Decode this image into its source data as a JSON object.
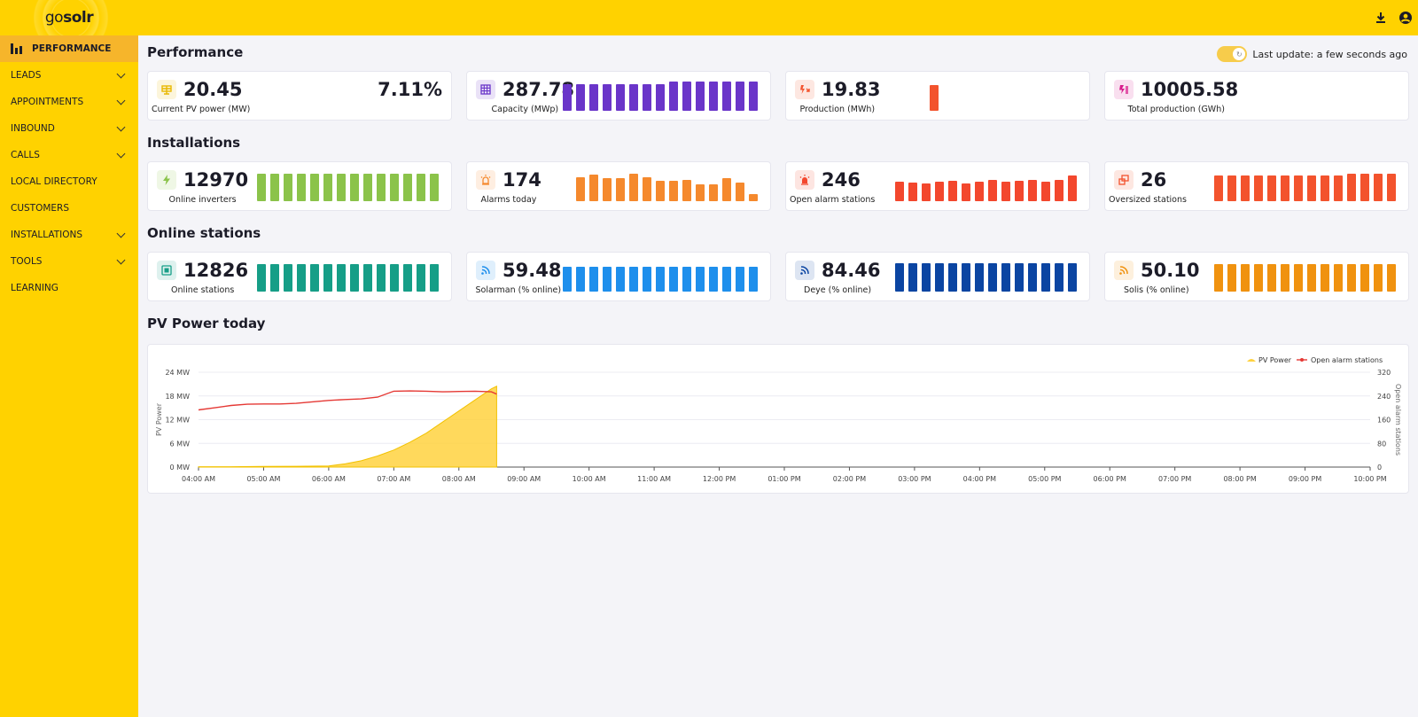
{
  "app": {
    "logo_prefix": "go",
    "logo_suffix": "solr"
  },
  "sidebar": {
    "items": [
      {
        "label": "PERFORMANCE",
        "active": true,
        "expandable": false
      },
      {
        "label": "LEADS",
        "active": false,
        "expandable": true
      },
      {
        "label": "APPOINTMENTS",
        "active": false,
        "expandable": true
      },
      {
        "label": "INBOUND",
        "active": false,
        "expandable": true
      },
      {
        "label": "CALLS",
        "active": false,
        "expandable": true
      },
      {
        "label": "LOCAL DIRECTORY",
        "active": false,
        "expandable": false
      },
      {
        "label": "CUSTOMERS",
        "active": false,
        "expandable": false
      },
      {
        "label": "INSTALLATIONS",
        "active": false,
        "expandable": true
      },
      {
        "label": "TOOLS",
        "active": false,
        "expandable": true
      },
      {
        "label": "LEARNING",
        "active": false,
        "expandable": false
      }
    ]
  },
  "header": {
    "icons": [
      "download-icon",
      "account-icon"
    ]
  },
  "performance": {
    "title": "Performance",
    "last_update": "Last update: a few seconds ago",
    "cards": [
      {
        "value": "20.45",
        "label": "Current PV power (MW)",
        "extra": "7.11%",
        "icon": "solar-panel-icon",
        "color": "#e8b800",
        "bars": []
      },
      {
        "value": "287.78",
        "label": "Capacity (MWp)",
        "icon": "grid-icon",
        "color": "#6a35c9",
        "bars": [
          0.88,
          0.88,
          0.88,
          0.88,
          0.88,
          0.88,
          0.88,
          0.88,
          0.96,
          0.96,
          0.96,
          0.96,
          0.96,
          0.96,
          0.96
        ]
      },
      {
        "value": "19.83",
        "label": "Production (MWh)",
        "icon": "lightning-production-icon",
        "color": "#f3532d",
        "bars": [
          0.85
        ]
      },
      {
        "value": "10005.58",
        "label": "Total production (GWh)",
        "icon": "total-production-icon",
        "color": "#d81b8c",
        "bars": []
      }
    ]
  },
  "installations": {
    "title": "Installations",
    "cards": [
      {
        "value": "12970",
        "label": "Online inverters",
        "icon": "bolt-icon",
        "color": "#8bc34a",
        "bars": [
          0.92,
          0.92,
          0.92,
          0.92,
          0.92,
          0.92,
          0.92,
          0.92,
          0.92,
          0.92,
          0.92,
          0.92,
          0.92,
          0.92
        ]
      },
      {
        "value": "174",
        "label": "Alarms today",
        "icon": "alarm-light-icon",
        "color": "#f5892d",
        "bars": [
          0.8,
          0.88,
          0.76,
          0.76,
          0.92,
          0.8,
          0.68,
          0.68,
          0.72,
          0.56,
          0.56,
          0.76,
          0.62,
          0.24
        ]
      },
      {
        "value": "246",
        "label": "Open alarm stations",
        "icon": "siren-icon",
        "color": "#f3472d",
        "bars": [
          0.66,
          0.62,
          0.6,
          0.66,
          0.68,
          0.6,
          0.66,
          0.72,
          0.66,
          0.68,
          0.72,
          0.66,
          0.72,
          0.86
        ]
      },
      {
        "value": "26",
        "label": "Oversized stations",
        "icon": "oversized-icon",
        "color": "#f3532d",
        "bars": [
          0.86,
          0.86,
          0.86,
          0.86,
          0.86,
          0.86,
          0.86,
          0.86,
          0.86,
          0.86,
          0.92,
          0.92,
          0.92,
          0.92
        ]
      }
    ]
  },
  "online": {
    "title": "Online stations",
    "cards": [
      {
        "value": "12826",
        "label": "Online stations",
        "icon": "station-icon",
        "color": "#169e87",
        "bars": [
          0.92,
          0.92,
          0.92,
          0.92,
          0.92,
          0.92,
          0.92,
          0.92,
          0.92,
          0.92,
          0.92,
          0.92,
          0.92,
          0.92
        ]
      },
      {
        "value": "59.48",
        "label": "Solarman (% online)",
        "icon": "wifi-icon",
        "color": "#1e8fec",
        "bars": [
          0.82,
          0.82,
          0.82,
          0.82,
          0.82,
          0.82,
          0.82,
          0.82,
          0.82,
          0.82,
          0.82,
          0.82,
          0.82,
          0.82,
          0.82
        ]
      },
      {
        "value": "84.46",
        "label": "Deye (% online)",
        "icon": "wifi-icon",
        "color": "#0b45a2",
        "bars": [
          0.94,
          0.94,
          0.94,
          0.94,
          0.94,
          0.94,
          0.94,
          0.94,
          0.94,
          0.94,
          0.94,
          0.94,
          0.94,
          0.94
        ]
      },
      {
        "value": "50.10",
        "label": "Solis (% online)",
        "icon": "wifi-icon",
        "color": "#f0920f",
        "bars": [
          0.92,
          0.92,
          0.92,
          0.92,
          0.92,
          0.92,
          0.92,
          0.92,
          0.92,
          0.92,
          0.92,
          0.92,
          0.92,
          0.92
        ]
      }
    ]
  },
  "pv_today": {
    "title": "PV Power today"
  },
  "chart_data": {
    "type": "area",
    "title": "PV Power today",
    "ylabel": "PV Power",
    "y2label": "Open alarm stations",
    "ylim": [
      0,
      24
    ],
    "y2lim": [
      0,
      320
    ],
    "yticks": [
      "0 MW",
      "6 MW",
      "12 MW",
      "18 MW",
      "24 MW"
    ],
    "y2ticks": [
      "0",
      "80",
      "160",
      "240",
      "320"
    ],
    "xticks": [
      "04:00 AM",
      "05:00 AM",
      "06:00 AM",
      "07:00 AM",
      "08:00 AM",
      "09:00 AM",
      "10:00 AM",
      "11:00 AM",
      "12:00 PM",
      "01:00 PM",
      "02:00 PM",
      "03:00 PM",
      "04:00 PM",
      "05:00 PM",
      "06:00 PM",
      "07:00 PM",
      "08:00 PM",
      "09:00 PM",
      "10:00 PM"
    ],
    "legend": "top-right",
    "grid": true,
    "series": [
      {
        "name": "PV Power",
        "axis": "left",
        "color": "#ffd23f",
        "x": [
          4.0,
          4.5,
          5.0,
          5.5,
          6.0,
          6.25,
          6.5,
          6.75,
          7.0,
          7.25,
          7.5,
          7.75,
          8.0,
          8.25,
          8.5,
          8.58
        ],
        "values": [
          0.1,
          0.1,
          0.15,
          0.2,
          0.3,
          0.8,
          1.6,
          2.8,
          4.3,
          6.3,
          8.6,
          11.4,
          14.2,
          17.0,
          19.8,
          20.45
        ]
      },
      {
        "name": "Open alarm stations",
        "axis": "right",
        "color": "#e53935",
        "x": [
          4.0,
          4.25,
          4.5,
          4.75,
          5.0,
          5.25,
          5.5,
          5.75,
          6.0,
          6.25,
          6.5,
          6.75,
          7.0,
          7.25,
          7.5,
          7.75,
          8.0,
          8.25,
          8.5,
          8.58
        ],
        "values": [
          193,
          200,
          208,
          212,
          213,
          213,
          215,
          220,
          225,
          228,
          230,
          236,
          256,
          257,
          256,
          254,
          255,
          256,
          254,
          246
        ]
      }
    ]
  }
}
